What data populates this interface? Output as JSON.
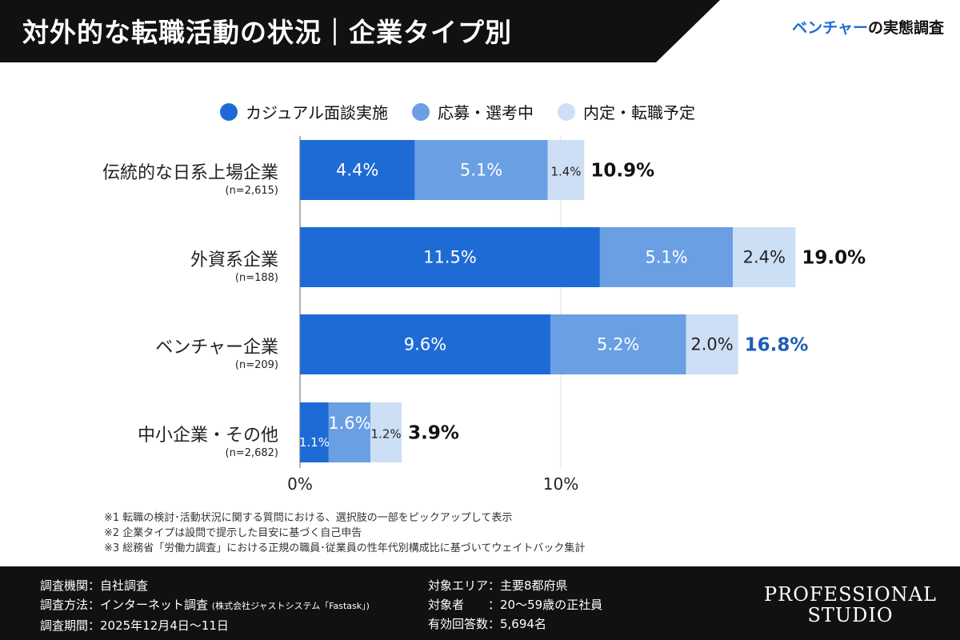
{
  "header": {
    "title": "対外的な転職活動の状況｜企業タイプ別",
    "brand_highlight": "ベンチャー",
    "brand_rest": "の実態調査"
  },
  "colors": {
    "casual": "#1f6bd6",
    "applying": "#6a9fe3",
    "offer": "#cddff5",
    "highlight": "#1a5fb4"
  },
  "chart_data": {
    "type": "bar",
    "orientation": "horizontal",
    "stacked": true,
    "title": "対外的な転職活動の状況｜企業タイプ別",
    "legend": [
      "カジュアル面談実施",
      "応募・選考中",
      "内定・転職予定"
    ],
    "categories": [
      "伝統的な日系上場企業",
      "外資系企業",
      "ベンチャー企業",
      "中小企業・その他"
    ],
    "sample_sizes": [
      "(n=2,615)",
      "(n=188)",
      "(n=209)",
      "(n=2,682)"
    ],
    "series": [
      {
        "name": "カジュアル面談実施",
        "values": [
          4.4,
          11.5,
          9.6,
          1.1
        ]
      },
      {
        "name": "応募・選考中",
        "values": [
          5.1,
          5.1,
          5.2,
          1.6
        ]
      },
      {
        "name": "内定・転職予定",
        "values": [
          1.4,
          2.4,
          2.0,
          1.2
        ]
      }
    ],
    "totals": [
      10.9,
      19.0,
      16.8,
      3.9
    ],
    "highlight_category": "ベンチャー企業",
    "xticks": [
      "0%",
      "10%"
    ],
    "xlim": [
      0,
      20
    ],
    "grid": true,
    "legend_position": "top"
  },
  "notes": [
    "※1 転職の検討･活動状況に関する質問における、選択肢の一部をピックアップして表示",
    "※2 企業タイプは設問で提示した目安に基づく自己申告",
    "※3 総務省「労働力調査」における正規の職員･従業員の性年代別構成比に基づいてウェイトバック集計"
  ],
  "footer": {
    "left": [
      "調査機関：自社調査",
      "調査方法：インターネット調査",
      "調査期間：2025年12月4日〜11日"
    ],
    "method_note": "(株式会社ジャストシステム「Fastask」)",
    "right": [
      "対象エリア：主要8都府県",
      "対象者　　：20〜59歳の正社員",
      "有効回答数：5,694名"
    ],
    "logo": [
      "PROFESSIONAL",
      "STUDIO"
    ]
  }
}
